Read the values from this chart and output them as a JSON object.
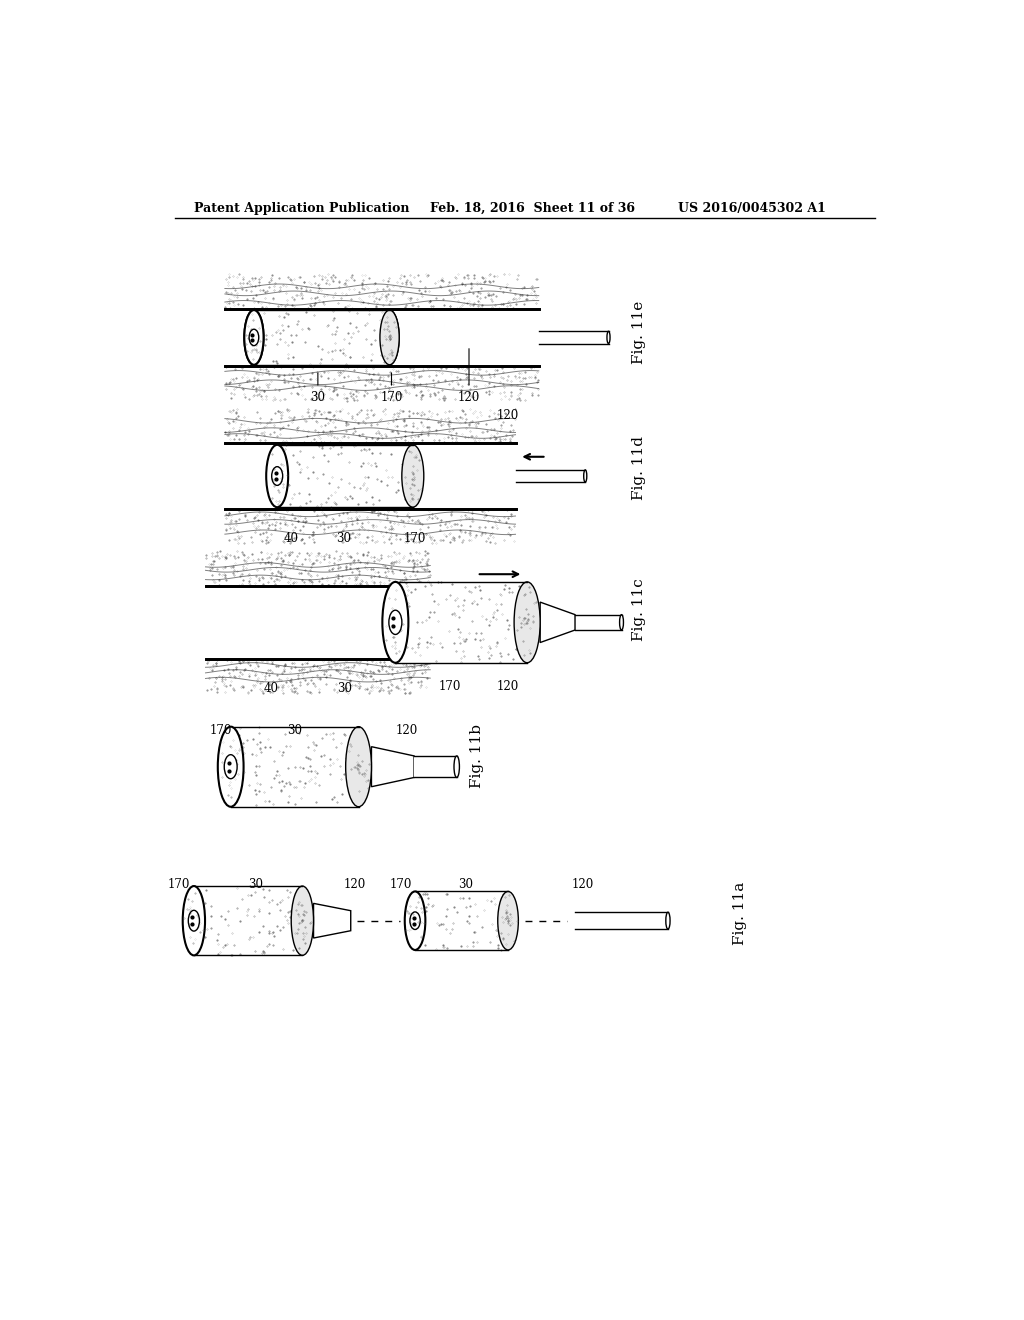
{
  "bg_color": "#ffffff",
  "header_left": "Patent Application Publication",
  "header_center": "Feb. 18, 2016  Sheet 11 of 36",
  "header_right": "US 2016/0045302 A1",
  "stipple_color": "#888888",
  "tissue_line_color": "#000000",
  "device_stipple_color": "#aaaaaa"
}
